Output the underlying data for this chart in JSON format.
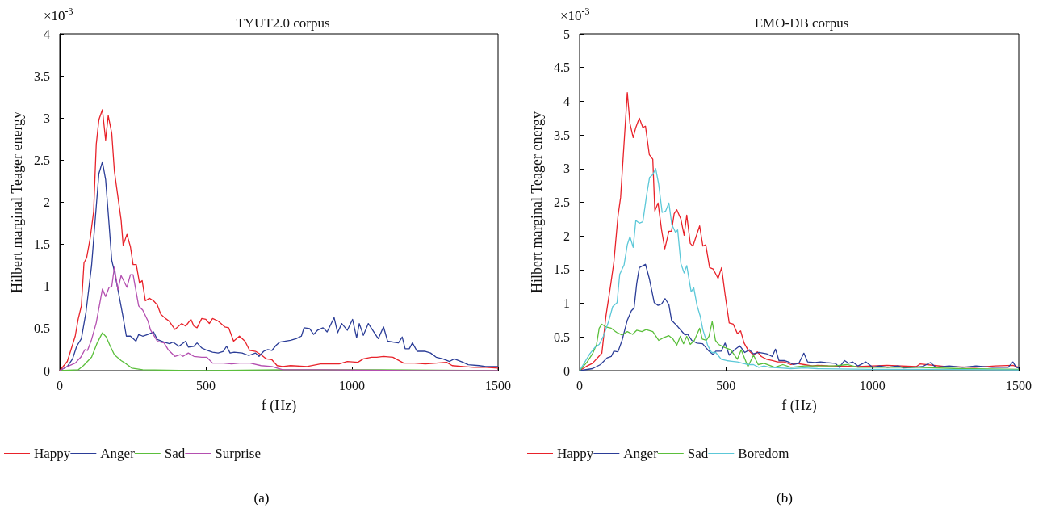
{
  "chart_data": [
    {
      "type": "line",
      "title": "TYUT2.0 corpus",
      "xlabel": "f (Hz)",
      "ylabel": "Hilbert marginal Teager energy",
      "annotations": [
        "×10$^{-3}$",
        "(a)"
      ],
      "xlim": [
        0,
        1500
      ],
      "xticks": [
        0,
        500,
        1000,
        1500
      ],
      "ylim": [
        0,
        4
      ],
      "yticks": [
        0,
        0.5,
        1,
        1.5,
        2,
        2.5,
        3,
        3.5,
        4
      ],
      "grid": false,
      "legend": "bottom",
      "marker": "none",
      "line_style": "solid",
      "series": [
        {
          "name": "Happy",
          "color": "#e8222a",
          "x": [
            0,
            26,
            53,
            63,
            74,
            83,
            92,
            104,
            116,
            125,
            134,
            146,
            157,
            166,
            178,
            187,
            210,
            217,
            230,
            242,
            251,
            262,
            273,
            282,
            293,
            307,
            321,
            334,
            346,
            362,
            374,
            394,
            417,
            431,
            449,
            459,
            470,
            486,
            500,
            512,
            523,
            542,
            565,
            578,
            595,
            615,
            634,
            650,
            670,
            689,
            707,
            726,
            744,
            763,
            790,
            846,
            892,
            956,
            984,
            1020,
            1039,
            1067,
            1085,
            1108,
            1140,
            1177,
            1214,
            1251,
            1288,
            1324,
            1343,
            1380,
            1417,
            1458,
            1500
          ],
          "values": [
            0,
            0.11,
            0.41,
            0.61,
            0.77,
            1.28,
            1.34,
            1.57,
            1.89,
            2.69,
            2.98,
            3.1,
            2.74,
            3.03,
            2.82,
            2.37,
            1.79,
            1.49,
            1.62,
            1.47,
            1.26,
            1.26,
            1.04,
            1.07,
            0.83,
            0.86,
            0.83,
            0.78,
            0.67,
            0.62,
            0.59,
            0.49,
            0.56,
            0.53,
            0.61,
            0.53,
            0.51,
            0.62,
            0.61,
            0.56,
            0.62,
            0.59,
            0.52,
            0.51,
            0.35,
            0.41,
            0.35,
            0.24,
            0.23,
            0.19,
            0.14,
            0.13,
            0.06,
            0.05,
            0.06,
            0.05,
            0.08,
            0.08,
            0.11,
            0.1,
            0.14,
            0.16,
            0.16,
            0.17,
            0.16,
            0.09,
            0.09,
            0.08,
            0.09,
            0.1,
            0.06,
            0.05,
            0.04,
            0.04,
            0.03
          ]
        },
        {
          "name": "Anger",
          "color": "#2b3d97",
          "x": [
            0,
            26,
            44,
            58,
            74,
            90,
            109,
            122,
            134,
            146,
            157,
            169,
            178,
            187,
            201,
            215,
            228,
            242,
            261,
            270,
            284,
            302,
            321,
            334,
            357,
            376,
            387,
            408,
            431,
            440,
            459,
            470,
            486,
            505,
            523,
            542,
            560,
            571,
            583,
            597,
            624,
            647,
            670,
            682,
            698,
            712,
            726,
            740,
            753,
            790,
            809,
            827,
            836,
            855,
            869,
            882,
            901,
            915,
            939,
            951,
            965,
            984,
            1002,
            1016,
            1025,
            1039,
            1056,
            1090,
            1108,
            1122,
            1159,
            1172,
            1182,
            1196,
            1207,
            1223,
            1251,
            1269,
            1288,
            1311,
            1334,
            1350,
            1380,
            1398,
            1435,
            1458,
            1500
          ],
          "values": [
            0,
            0.05,
            0.14,
            0.29,
            0.38,
            0.7,
            1.25,
            1.82,
            2.34,
            2.48,
            2.27,
            1.73,
            1.31,
            1.18,
            0.93,
            0.67,
            0.41,
            0.41,
            0.35,
            0.43,
            0.41,
            0.43,
            0.46,
            0.37,
            0.34,
            0.32,
            0.34,
            0.29,
            0.35,
            0.28,
            0.29,
            0.33,
            0.27,
            0.24,
            0.22,
            0.21,
            0.23,
            0.29,
            0.21,
            0.22,
            0.21,
            0.18,
            0.21,
            0.17,
            0.23,
            0.25,
            0.24,
            0.3,
            0.34,
            0.36,
            0.38,
            0.41,
            0.51,
            0.5,
            0.43,
            0.48,
            0.51,
            0.46,
            0.63,
            0.45,
            0.56,
            0.48,
            0.61,
            0.39,
            0.56,
            0.42,
            0.56,
            0.38,
            0.52,
            0.35,
            0.33,
            0.4,
            0.26,
            0.26,
            0.33,
            0.23,
            0.23,
            0.21,
            0.16,
            0.14,
            0.11,
            0.14,
            0.1,
            0.07,
            0.06,
            0.05,
            0.05
          ]
        },
        {
          "name": "Sad",
          "color": "#5bbf3c",
          "x": [
            0,
            63,
            81,
            109,
            127,
            146,
            159,
            173,
            187,
            210,
            228,
            247,
            284,
            449,
            763,
            1100,
            1500
          ],
          "values": [
            0,
            0.01,
            0.06,
            0.16,
            0.32,
            0.45,
            0.4,
            0.29,
            0.19,
            0.12,
            0.08,
            0.03,
            0.01,
            0,
            0.01,
            0.01,
            0
          ]
        },
        {
          "name": "Surprise",
          "color": "#b44fb0",
          "x": [
            0,
            26,
            53,
            72,
            86,
            95,
            109,
            125,
            146,
            157,
            169,
            178,
            187,
            199,
            210,
            230,
            242,
            251,
            270,
            284,
            302,
            311,
            334,
            357,
            371,
            394,
            413,
            422,
            440,
            459,
            486,
            503,
            523,
            560,
            588,
            615,
            634,
            652,
            689,
            726,
            763,
            900,
            1200,
            1500
          ],
          "values": [
            0,
            0.05,
            0.09,
            0.16,
            0.25,
            0.24,
            0.37,
            0.57,
            0.97,
            0.88,
            0.99,
            1,
            1.23,
            0.96,
            1.13,
            0.99,
            1.14,
            1.14,
            0.77,
            0.72,
            0.59,
            0.48,
            0.35,
            0.33,
            0.25,
            0.17,
            0.19,
            0.17,
            0.21,
            0.17,
            0.16,
            0.16,
            0.09,
            0.09,
            0.08,
            0.09,
            0.09,
            0.09,
            0.06,
            0.05,
            0.01,
            0.01,
            0,
            0
          ]
        }
      ]
    },
    {
      "type": "line",
      "title": "EMO-DB corpus",
      "xlabel": "f (Hz)",
      "ylabel": "Hilbert marginal Teager energy",
      "annotations": [
        "×10$^{-3}$",
        "(b)"
      ],
      "xlim": [
        0,
        1500
      ],
      "xticks": [
        0,
        500,
        1000,
        1500
      ],
      "ylim": [
        0,
        5
      ],
      "yticks": [
        0,
        0.5,
        1,
        1.5,
        2,
        2.5,
        3,
        3.5,
        4,
        4.5,
        5
      ],
      "grid": false,
      "legend": "bottom",
      "marker": "none",
      "line_style": "solid",
      "series": [
        {
          "name": "Happy",
          "color": "#e8222a",
          "x": [
            0,
            26,
            44,
            76,
            90,
            106,
            117,
            131,
            140,
            163,
            172,
            183,
            192,
            204,
            216,
            225,
            238,
            250,
            257,
            268,
            280,
            291,
            305,
            314,
            323,
            332,
            346,
            357,
            366,
            378,
            387,
            410,
            421,
            431,
            444,
            456,
            473,
            485,
            497,
            511,
            525,
            539,
            550,
            562,
            575,
            594,
            607,
            621,
            639,
            658,
            676,
            699,
            722,
            740,
            768,
            795,
            813,
            850,
            950,
            1050,
            1150,
            1163,
            1250,
            1350,
            1420,
            1480,
            1500
          ],
          "values": [
            0,
            0.07,
            0.11,
            0.26,
            0.81,
            1.27,
            1.61,
            2.29,
            2.57,
            4.13,
            3.67,
            3.46,
            3.61,
            3.75,
            3.61,
            3.63,
            3.21,
            3.14,
            2.37,
            2.49,
            2.09,
            1.81,
            2.07,
            2.07,
            2.33,
            2.39,
            2.25,
            2.01,
            2.31,
            1.89,
            1.85,
            2.15,
            1.85,
            1.87,
            1.53,
            1.51,
            1.37,
            1.53,
            1.13,
            0.71,
            0.69,
            0.55,
            0.59,
            0.41,
            0.31,
            0.23,
            0.28,
            0.21,
            0.17,
            0.15,
            0.13,
            0.13,
            0.09,
            0.11,
            0.09,
            0.07,
            0.08,
            0.07,
            0.06,
            0.08,
            0.06,
            0.1,
            0.06,
            0.05,
            0.07,
            0.08,
            0.05
          ]
        },
        {
          "name": "Anger",
          "color": "#2b3d97",
          "x": [
            0,
            44,
            71,
            94,
            108,
            117,
            131,
            145,
            163,
            177,
            186,
            195,
            204,
            225,
            238,
            255,
            268,
            280,
            292,
            305,
            314,
            332,
            346,
            360,
            369,
            383,
            401,
            420,
            442,
            456,
            465,
            484,
            497,
            511,
            529,
            547,
            564,
            580,
            594,
            612,
            639,
            658,
            669,
            681,
            699,
            713,
            731,
            749,
            766,
            779,
            804,
            823,
            841,
            873,
            887,
            905,
            919,
            933,
            951,
            978,
            1001,
            1024,
            1052,
            1088,
            1107,
            1171,
            1198,
            1217,
            1262,
            1308,
            1354,
            1409,
            1464,
            1480,
            1491,
            1500
          ],
          "values": [
            0,
            0.03,
            0.09,
            0.19,
            0.21,
            0.29,
            0.28,
            0.45,
            0.75,
            0.89,
            0.93,
            1.29,
            1.53,
            1.58,
            1.37,
            1.01,
            0.97,
            0.99,
            1.07,
            0.98,
            0.75,
            0.67,
            0.6,
            0.53,
            0.54,
            0.45,
            0.41,
            0.4,
            0.29,
            0.24,
            0.29,
            0.29,
            0.41,
            0.23,
            0.31,
            0.37,
            0.27,
            0.31,
            0.25,
            0.27,
            0.25,
            0.21,
            0.32,
            0.15,
            0.15,
            0.13,
            0.09,
            0.11,
            0.26,
            0.13,
            0.12,
            0.13,
            0.12,
            0.11,
            0.05,
            0.15,
            0.11,
            0.13,
            0.07,
            0.13,
            0.05,
            0.07,
            0.05,
            0.07,
            0.04,
            0.06,
            0.12,
            0.05,
            0.07,
            0.05,
            0.07,
            0.05,
            0.05,
            0.13,
            0.05,
            0.04
          ]
        },
        {
          "name": "Sad",
          "color": "#5bbf3c",
          "x": [
            0,
            26,
            44,
            58,
            67,
            76,
            90,
            108,
            126,
            145,
            163,
            181,
            195,
            213,
            227,
            250,
            270,
            287,
            305,
            319,
            332,
            344,
            355,
            366,
            378,
            392,
            410,
            419,
            433,
            442,
            453,
            464,
            475,
            493,
            516,
            539,
            552,
            575,
            594,
            610,
            630,
            667,
            694,
            722,
            768,
            813,
            868,
            914,
            951,
            1150,
            1300,
            1500
          ],
          "values": [
            0,
            0.13,
            0.25,
            0.39,
            0.63,
            0.69,
            0.65,
            0.63,
            0.57,
            0.53,
            0.58,
            0.54,
            0.6,
            0.58,
            0.61,
            0.58,
            0.45,
            0.49,
            0.52,
            0.47,
            0.38,
            0.51,
            0.4,
            0.51,
            0.39,
            0.45,
            0.63,
            0.47,
            0.45,
            0.51,
            0.73,
            0.45,
            0.39,
            0.35,
            0.31,
            0.17,
            0.31,
            0.06,
            0.23,
            0.09,
            0.11,
            0.05,
            0.09,
            0.05,
            0.07,
            0.07,
            0.07,
            0.09,
            0.05,
            0.05,
            0.03,
            0.02
          ]
        },
        {
          "name": "Boredom",
          "color": "#5cc8d8",
          "x": [
            0,
            35,
            53,
            67,
            81,
            99,
            113,
            128,
            137,
            152,
            163,
            172,
            183,
            192,
            204,
            216,
            229,
            239,
            250,
            260,
            270,
            282,
            294,
            305,
            315,
            328,
            335,
            346,
            357,
            366,
            381,
            390,
            401,
            412,
            421,
            438,
            451,
            465,
            484,
            502,
            520,
            539,
            557,
            575,
            594,
            612,
            630,
            649,
            685,
            722,
            768,
            813,
            1000,
            1200,
            1500
          ],
          "values": [
            0,
            0.25,
            0.35,
            0.39,
            0.51,
            0.73,
            0.95,
            1.01,
            1.43,
            1.57,
            1.87,
            1.99,
            1.83,
            2.23,
            2.19,
            2.21,
            2.61,
            2.87,
            2.91,
            3,
            2.77,
            2.35,
            2.37,
            2.49,
            2.17,
            2.05,
            2.09,
            1.59,
            1.45,
            1.56,
            1.17,
            1.23,
            0.97,
            0.81,
            0.61,
            0.37,
            0.27,
            0.27,
            0.17,
            0.15,
            0.14,
            0.13,
            0.11,
            0.09,
            0.09,
            0.05,
            0.07,
            0.05,
            0.04,
            0.03,
            0.04,
            0.03,
            0.02,
            0.02,
            0.01
          ]
        }
      ]
    }
  ]
}
